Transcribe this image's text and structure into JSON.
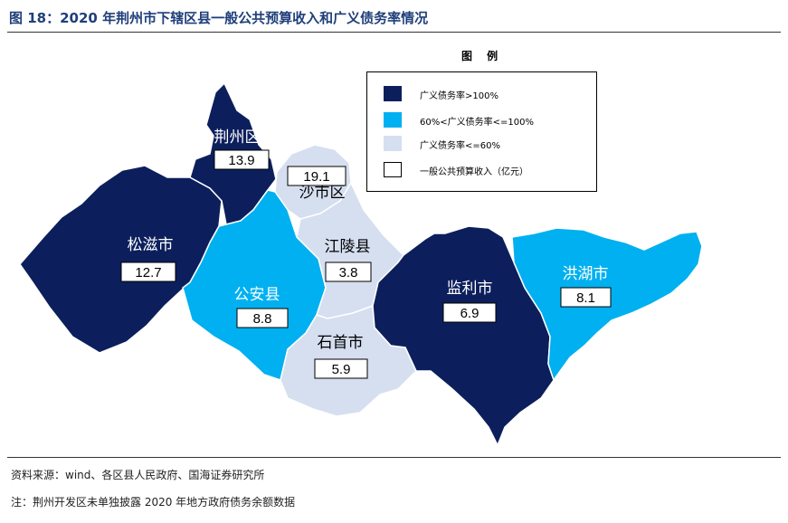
{
  "title": "图 18：2020 年荆州市下辖区县一般公共预算收入和广义债务率情况",
  "colors": {
    "high": "#0c1f5c",
    "mid": "#00b0f0",
    "low": "#d5dff0"
  },
  "legend": {
    "title": "图 例",
    "items": [
      {
        "label": "广义债务率>100%",
        "color": "#0c1f5c"
      },
      {
        "label": "60%<广义债务率<=100%",
        "color": "#00b0f0"
      },
      {
        "label": "广义债务率<=60%",
        "color": "#d5dff0"
      },
      {
        "label": "一般公共预算收入（亿元）",
        "color": "#ffffff"
      }
    ]
  },
  "regions": [
    {
      "name": "荆州区",
      "value": "13.9",
      "category": "high"
    },
    {
      "name": "沙市区",
      "value": "19.1",
      "category": "low"
    },
    {
      "name": "松滋市",
      "value": "12.7",
      "category": "high"
    },
    {
      "name": "公安县",
      "value": "8.8",
      "category": "mid"
    },
    {
      "name": "江陵县",
      "value": "3.8",
      "category": "low"
    },
    {
      "name": "石首市",
      "value": "5.9",
      "category": "low"
    },
    {
      "name": "监利市",
      "value": "6.9",
      "category": "high"
    },
    {
      "name": "洪湖市",
      "value": "8.1",
      "category": "mid"
    }
  ],
  "source": "资料来源：wind、各区县人民政府、国海证券研究所",
  "note": "注：荆州开发区未单独披露 2020 年地方政府债务余额数据"
}
